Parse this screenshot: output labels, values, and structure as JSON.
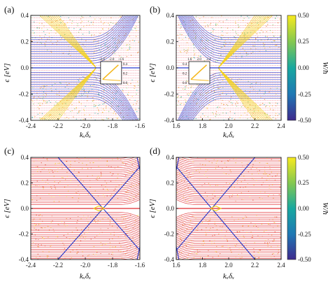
{
  "figure": {
    "panels": [
      "(a)",
      "(b)",
      "(c)",
      "(d)"
    ],
    "xlabel": "kₓδₓ",
    "ylabel": "ϵ [eV]",
    "colorbar": {
      "label": "W/ħ",
      "ticks": [
        "0.50",
        "0.25",
        "0.00",
        "-0.25",
        "-0.50"
      ]
    }
  },
  "chart_data": [
    {
      "type": "line",
      "panel": "(a)",
      "xlabel": "kₓδₓ",
      "ylabel": "ϵ [eV]",
      "xlim": [
        -2.4,
        -1.6
      ],
      "ylim": [
        -0.4,
        0.4
      ],
      "xticks": [
        "-2.4",
        "-2.2",
        "-2.0",
        "-1.8",
        "-1.6"
      ],
      "yticks": [
        "-0.4",
        "-0.2",
        "0.0",
        "0.2",
        "0.4"
      ],
      "node_x": -1.9,
      "inset": {
        "xticks": [
          "-2.4",
          "-2.0",
          "-1.6"
        ],
        "yticks": [
          "0.4",
          "0.2",
          "0.0"
        ]
      },
      "colors": {
        "dashed_bands": "#e8324a",
        "gapped_bands": "#2b3bd0",
        "edge_states": "#f5d21e"
      }
    },
    {
      "type": "line",
      "panel": "(b)",
      "xlabel": "kₓδₓ",
      "ylabel": "ϵ [eV]",
      "xlim": [
        1.6,
        2.4
      ],
      "ylim": [
        -0.4,
        0.4
      ],
      "xticks": [
        "1.6",
        "1.8",
        "2.0",
        "2.2",
        "2.4"
      ],
      "yticks": [
        "-0.4",
        "-0.2",
        "0.0",
        "0.2",
        "0.4"
      ],
      "node_x": 1.9,
      "inset": {
        "xticks": [
          "1.6",
          "2.0",
          "2.4"
        ],
        "yticks": [
          "0.4",
          "0.2",
          "0.0"
        ]
      },
      "colors": {
        "dashed_bands": "#e8324a",
        "gapped_bands": "#2b3bd0",
        "edge_states": "#f5d21e"
      }
    },
    {
      "type": "line",
      "panel": "(c)",
      "xlabel": "kₓδₓ",
      "ylabel": "ϵ [eV]",
      "xlim": [
        -2.4,
        -1.6
      ],
      "ylim": [
        -0.4,
        0.4
      ],
      "xticks": [
        "-2.4",
        "-2.2",
        "-2.0",
        "-1.8",
        "-1.6"
      ],
      "yticks": [
        "-0.4",
        "-0.2",
        "0.0",
        "0.2",
        "0.4"
      ],
      "node_x": -1.9,
      "cross_x": -1.87,
      "colors": {
        "bands": "#e02a30",
        "crossing_lines": "#2233c8",
        "edge_states": "#f5d21e"
      }
    },
    {
      "type": "line",
      "panel": "(d)",
      "xlabel": "kₓδₓ",
      "ylabel": "ϵ [eV]",
      "xlim": [
        1.6,
        2.4
      ],
      "ylim": [
        -0.4,
        0.4
      ],
      "xticks": [
        "1.6",
        "1.8",
        "2.0",
        "2.2",
        "2.4"
      ],
      "yticks": [
        "-0.4",
        "-0.2",
        "0.0",
        "0.2",
        "0.4"
      ],
      "node_x": 1.9,
      "cross_x": 1.87,
      "colors": {
        "bands": "#e02a30",
        "crossing_lines": "#2233c8",
        "edge_states": "#f5d21e"
      }
    }
  ]
}
